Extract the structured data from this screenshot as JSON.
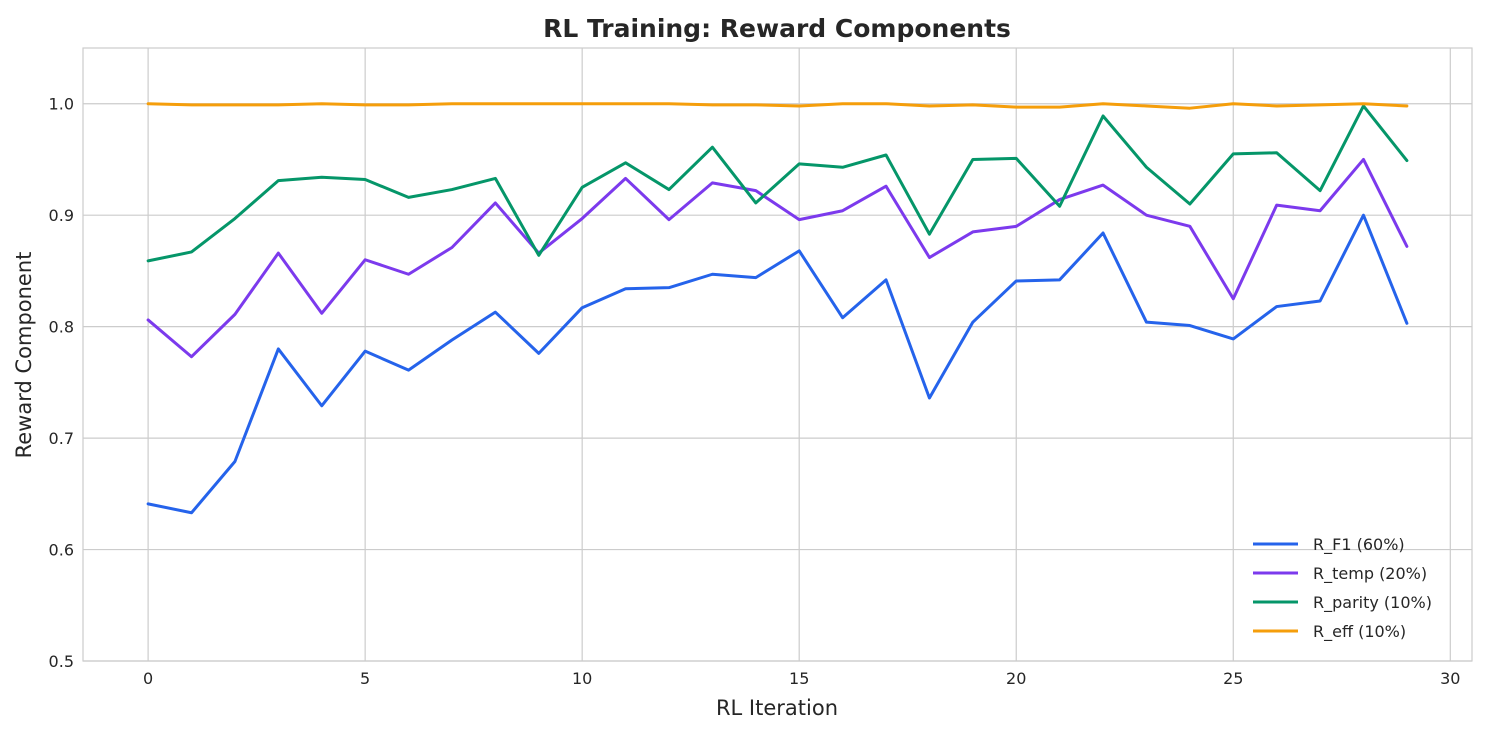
{
  "chart_data": {
    "type": "line",
    "title": "RL Training: Reward Components",
    "xlabel": "RL Iteration",
    "ylabel": "Reward Component",
    "xlim": [
      -1.5,
      30.5
    ],
    "ylim": [
      0.5,
      1.05
    ],
    "xticks": [
      0,
      5,
      10,
      15,
      20,
      25,
      30
    ],
    "yticks": [
      0.5,
      0.6,
      0.7,
      0.8,
      0.9,
      1.0
    ],
    "xtick_labels": [
      "0",
      "5",
      "10",
      "15",
      "20",
      "25",
      "30"
    ],
    "ytick_labels": [
      "0.5",
      "0.6",
      "0.7",
      "0.8",
      "0.9",
      "1.0"
    ],
    "grid": true,
    "legend_position": "lower-right",
    "x": [
      0,
      1,
      2,
      3,
      4,
      5,
      6,
      7,
      8,
      9,
      10,
      11,
      12,
      13,
      14,
      15,
      16,
      17,
      18,
      19,
      20,
      21,
      22,
      23,
      24,
      25,
      26,
      27,
      28,
      29
    ],
    "series": [
      {
        "name": "R_F1 (60%)",
        "color": "#2563eb",
        "values": [
          0.641,
          0.633,
          0.679,
          0.78,
          0.729,
          0.778,
          0.761,
          0.788,
          0.813,
          0.776,
          0.817,
          0.834,
          0.835,
          0.847,
          0.844,
          0.868,
          0.808,
          0.842,
          0.736,
          0.804,
          0.841,
          0.842,
          0.884,
          0.804,
          0.801,
          0.789,
          0.818,
          0.823,
          0.9,
          0.803
        ]
      },
      {
        "name": "R_temp (20%)",
        "color": "#7c3aed",
        "values": [
          0.806,
          0.773,
          0.811,
          0.866,
          0.812,
          0.86,
          0.847,
          0.871,
          0.911,
          0.866,
          0.897,
          0.933,
          0.896,
          0.929,
          0.922,
          0.896,
          0.904,
          0.926,
          0.862,
          0.885,
          0.89,
          0.914,
          0.927,
          0.9,
          0.89,
          0.825,
          0.909,
          0.904,
          0.95,
          0.872
        ]
      },
      {
        "name": "R_parity (10%)",
        "color": "#059669",
        "values": [
          0.859,
          0.867,
          0.897,
          0.931,
          0.934,
          0.932,
          0.916,
          0.923,
          0.933,
          0.864,
          0.925,
          0.947,
          0.923,
          0.961,
          0.911,
          0.946,
          0.943,
          0.954,
          0.883,
          0.95,
          0.951,
          0.908,
          0.989,
          0.943,
          0.91,
          0.955,
          0.956,
          0.922,
          0.998,
          0.949
        ]
      },
      {
        "name": "R_eff (10%)",
        "color": "#f59e0b",
        "values": [
          1.0,
          0.999,
          0.999,
          0.999,
          1.0,
          0.999,
          0.999,
          1.0,
          1.0,
          1.0,
          1.0,
          1.0,
          1.0,
          0.999,
          0.999,
          0.998,
          1.0,
          1.0,
          0.998,
          0.999,
          0.997,
          0.997,
          1.0,
          0.998,
          0.996,
          1.0,
          0.998,
          0.999,
          1.0,
          0.998
        ]
      }
    ]
  }
}
